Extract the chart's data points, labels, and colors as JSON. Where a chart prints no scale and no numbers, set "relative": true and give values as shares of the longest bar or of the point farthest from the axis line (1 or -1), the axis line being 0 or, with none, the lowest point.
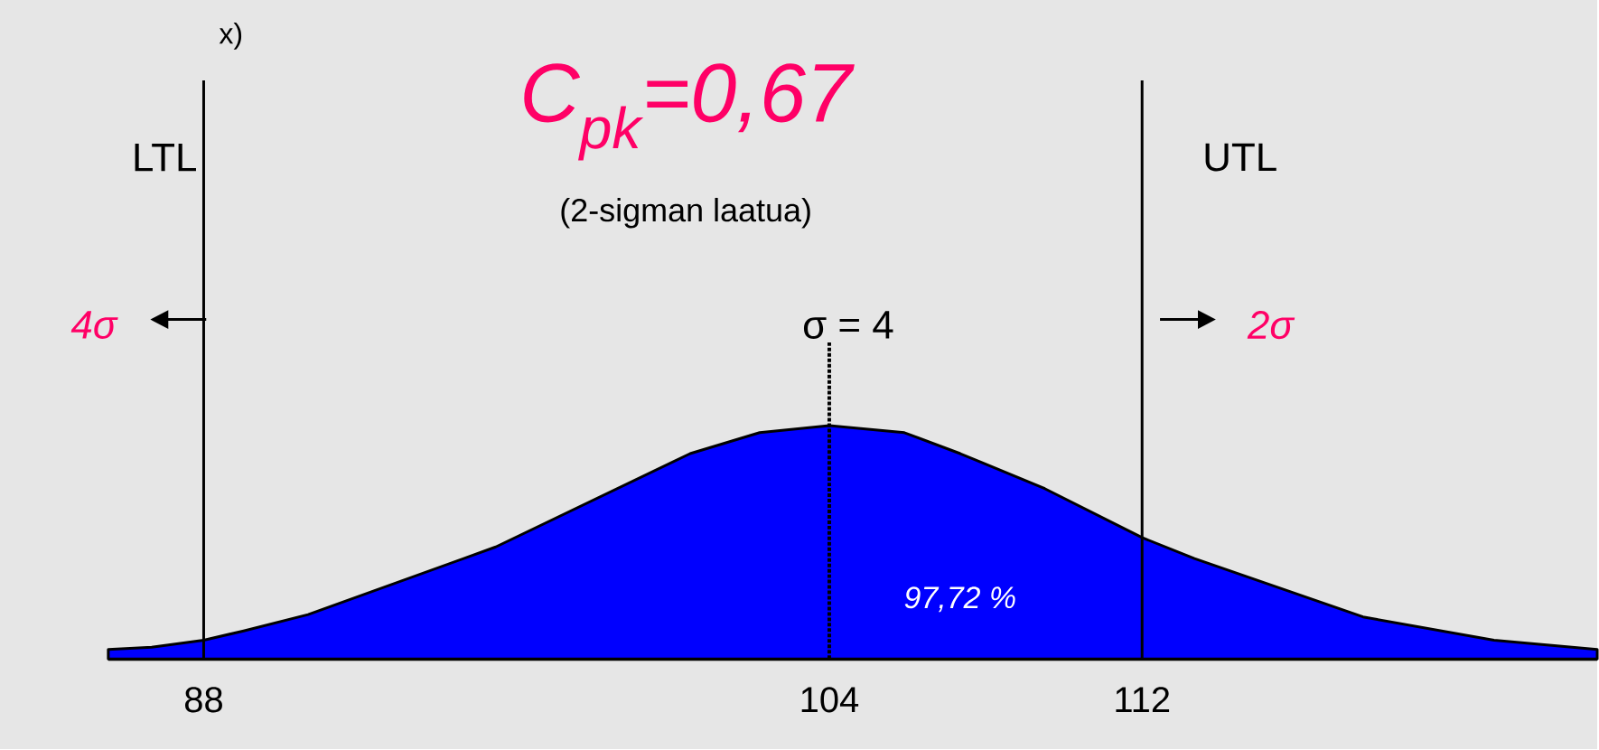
{
  "chart_data": {
    "type": "area",
    "title": "C$_{pk}$=0,67",
    "subtitle": "(2-sigman laatua)",
    "relative": true,
    "x": [
      85.56,
      86.67,
      88,
      89.02,
      90.67,
      95.47,
      100.44,
      102.22,
      104,
      105.92,
      107.35,
      109.51,
      112,
      113.34,
      117.65,
      121.0,
      123.64
    ],
    "series": [
      {
        "color": "#0000ff",
        "values": [
          0.04,
          0.05,
          0.08,
          0.12,
          0.19,
          0.48,
          0.88,
          0.97,
          1,
          0.97,
          0.88,
          0.73,
          0.52,
          0.43,
          0.18,
          0.08,
          0.04
        ]
      }
    ],
    "xlim": [
      85.56,
      123.64
    ],
    "xticks": [
      88,
      104,
      112
    ],
    "ref_lines": [
      {
        "axis": "x",
        "value": 88,
        "label": "LTL"
      },
      {
        "axis": "x",
        "value": 112,
        "label": "UTL"
      },
      {
        "axis": "x",
        "value": 104,
        "line_style": "dotted"
      }
    ],
    "annotations": [
      "x)",
      "σ = 4",
      "4σ",
      "2σ",
      "97,72 %"
    ]
  }
}
